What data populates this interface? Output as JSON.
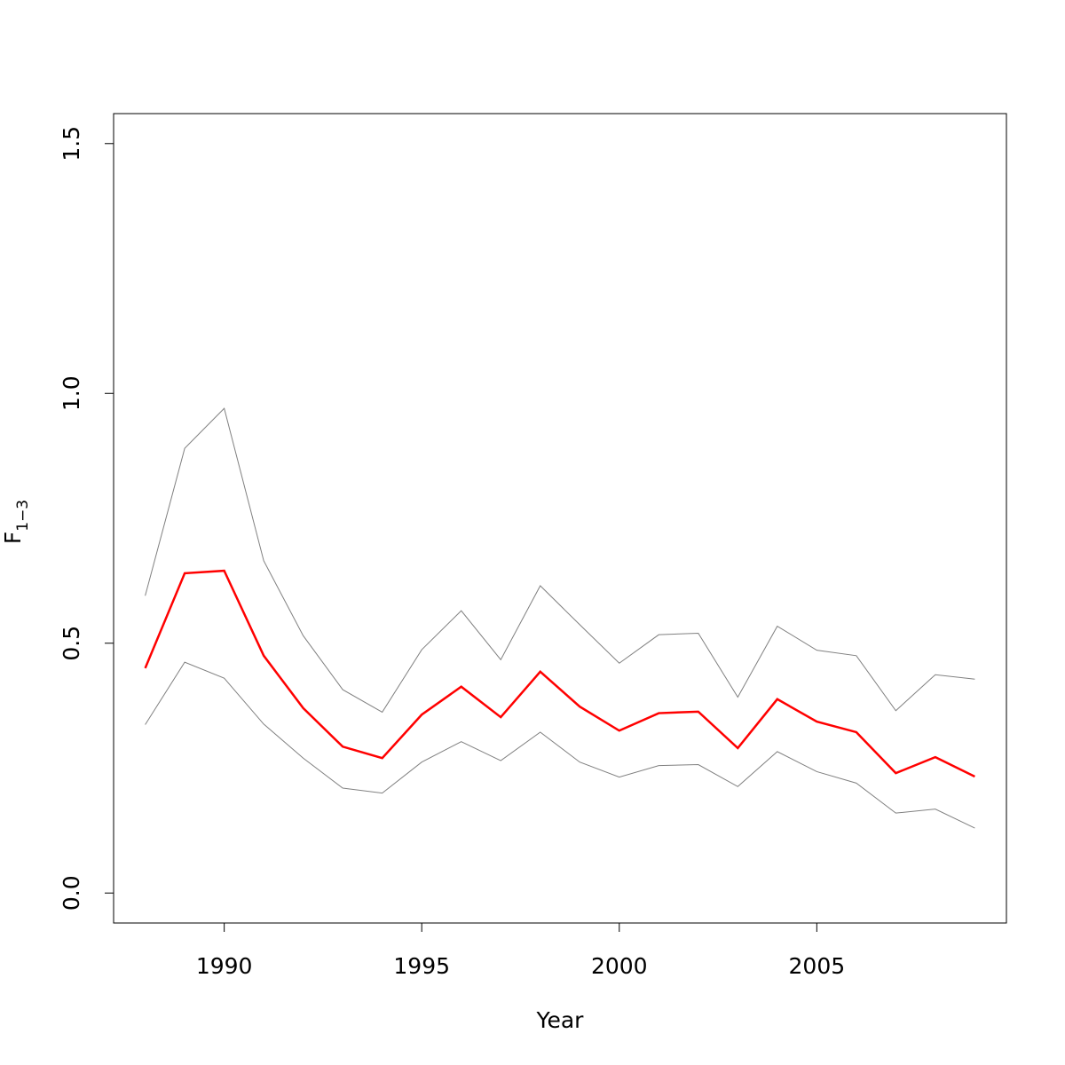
{
  "chart_data": {
    "type": "line",
    "title": "",
    "xlabel": "Year",
    "ylabel": {
      "main": "F",
      "subscript": "1−3"
    },
    "xlim": [
      1987.2,
      2009.8
    ],
    "ylim": [
      -0.06,
      1.56
    ],
    "xticks": [
      1990,
      1995,
      2000,
      2005
    ],
    "xtick_labels": [
      "1990",
      "1995",
      "2000",
      "2005"
    ],
    "yticks": [
      0.0,
      0.5,
      1.0,
      1.5
    ],
    "ytick_labels": [
      "0.0",
      "0.5",
      "1.0",
      "1.5"
    ],
    "x": [
      1988,
      1989,
      1990,
      1991,
      1992,
      1993,
      1994,
      1995,
      1996,
      1997,
      1998,
      1999,
      2000,
      2001,
      2002,
      2003,
      2004,
      2005,
      2006,
      2007,
      2008,
      2009
    ],
    "series": [
      {
        "role": "estimate",
        "color": "#ff0000",
        "values": [
          0.45,
          0.64,
          0.645,
          0.475,
          0.37,
          0.293,
          0.27,
          0.357,
          0.413,
          0.352,
          0.443,
          0.373,
          0.325,
          0.36,
          0.363,
          0.29,
          0.388,
          0.343,
          0.322,
          0.24,
          0.272,
          0.233
        ]
      },
      {
        "role": "upper",
        "color": "#808080",
        "values": [
          0.595,
          0.89,
          0.97,
          0.665,
          0.515,
          0.407,
          0.362,
          0.487,
          0.565,
          0.467,
          0.615,
          0.537,
          0.46,
          0.517,
          0.52,
          0.392,
          0.534,
          0.486,
          0.475,
          0.365,
          0.437,
          0.428
        ]
      },
      {
        "role": "lower",
        "color": "#808080",
        "values": [
          0.337,
          0.462,
          0.43,
          0.338,
          0.27,
          0.21,
          0.2,
          0.262,
          0.303,
          0.265,
          0.322,
          0.262,
          0.232,
          0.255,
          0.257,
          0.213,
          0.283,
          0.243,
          0.22,
          0.16,
          0.168,
          0.13
        ]
      }
    ],
    "legend": "none",
    "grid": false
  }
}
